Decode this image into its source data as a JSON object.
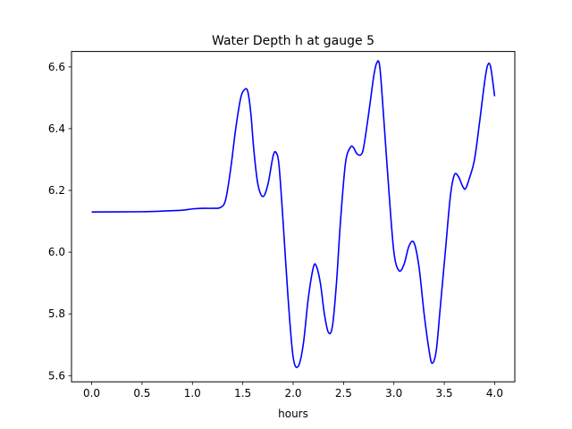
{
  "chart_data": {
    "type": "line",
    "title": "Water Depth h at gauge 5",
    "xlabel": "hours",
    "ylabel": "",
    "xlim": [
      -0.2,
      4.2
    ],
    "ylim": [
      5.58,
      6.65
    ],
    "x_ticks": [
      0.0,
      0.5,
      1.0,
      1.5,
      2.0,
      2.5,
      3.0,
      3.5,
      4.0
    ],
    "x_tick_labels": [
      "0.0",
      "0.5",
      "1.0",
      "1.5",
      "2.0",
      "2.5",
      "3.0",
      "3.5",
      "4.0"
    ],
    "y_ticks": [
      5.6,
      5.8,
      6.0,
      6.2,
      6.4,
      6.6
    ],
    "y_tick_labels": [
      "5.6",
      "5.8",
      "6.0",
      "6.2",
      "6.4",
      "6.6"
    ],
    "grid": false,
    "legend": "none",
    "series": [
      {
        "color": "#0000ff",
        "x": [
          0.0,
          0.5,
          0.7,
          0.9,
          1.0,
          1.1,
          1.2,
          1.28,
          1.33,
          1.38,
          1.43,
          1.48,
          1.52,
          1.55,
          1.58,
          1.61,
          1.65,
          1.7,
          1.75,
          1.8,
          1.83,
          1.86,
          1.9,
          1.95,
          2.0,
          2.05,
          2.1,
          2.15,
          2.2,
          2.23,
          2.27,
          2.31,
          2.35,
          2.39,
          2.43,
          2.47,
          2.52,
          2.57,
          2.6,
          2.63,
          2.67,
          2.7,
          2.75,
          2.8,
          2.83,
          2.86,
          2.9,
          2.95,
          3.0,
          3.05,
          3.1,
          3.15,
          3.2,
          3.25,
          3.3,
          3.35,
          3.38,
          3.42,
          3.46,
          3.51,
          3.56,
          3.6,
          3.64,
          3.68,
          3.71,
          3.75,
          3.8,
          3.85,
          3.9,
          3.93,
          3.96,
          4.0
        ],
        "y": [
          6.13,
          6.131,
          6.133,
          6.136,
          6.14,
          6.142,
          6.142,
          6.145,
          6.17,
          6.27,
          6.4,
          6.5,
          6.527,
          6.52,
          6.45,
          6.33,
          6.22,
          6.18,
          6.22,
          6.31,
          6.323,
          6.28,
          6.1,
          5.85,
          5.66,
          5.63,
          5.7,
          5.85,
          5.95,
          5.955,
          5.9,
          5.8,
          5.74,
          5.76,
          5.9,
          6.1,
          6.29,
          6.34,
          6.338,
          6.32,
          6.315,
          6.34,
          6.45,
          6.57,
          6.613,
          6.6,
          6.43,
          6.2,
          6.0,
          5.94,
          5.96,
          6.02,
          6.03,
          5.95,
          5.8,
          5.68,
          5.64,
          5.68,
          5.82,
          6.0,
          6.18,
          6.25,
          6.245,
          6.215,
          6.205,
          6.24,
          6.3,
          6.42,
          6.55,
          6.605,
          6.6,
          6.505
        ]
      }
    ]
  }
}
